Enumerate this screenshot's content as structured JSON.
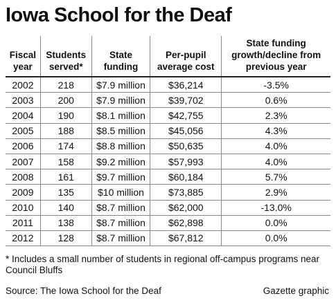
{
  "header": {
    "title": "Iowa School for the Deaf"
  },
  "table": {
    "columns": [
      [
        "Fiscal",
        "year"
      ],
      [
        "Students",
        "served*"
      ],
      [
        "State",
        "funding"
      ],
      [
        "Per-pupil",
        "average cost"
      ],
      [
        "State funding",
        "growth/decline from",
        "previous year"
      ]
    ],
    "rows": [
      [
        "2002",
        "218",
        "$7.9 million",
        "$36,214",
        "-3.5%"
      ],
      [
        "2003",
        "200",
        "$7.9 million",
        "$39,702",
        "0.6%"
      ],
      [
        "2004",
        "190",
        "$8.1 million",
        "$42,755",
        "2.3%"
      ],
      [
        "2005",
        "188",
        "$8.5 million",
        "$45,056",
        "4.3%"
      ],
      [
        "2006",
        "174",
        "$8.8 million",
        "$50,635",
        "4.0%"
      ],
      [
        "2007",
        "158",
        "$9.2 million",
        "$57,993",
        "4.0%"
      ],
      [
        "2008",
        "161",
        "$9.7 million",
        "$60,184",
        "5.7%"
      ],
      [
        "2009",
        "135",
        "$10 million",
        "$73,885",
        "2.9%"
      ],
      [
        "2010",
        "140",
        "$8.7 million",
        "$62,000",
        "-13.0%"
      ],
      [
        "2011",
        "138",
        "$8.7 million",
        "$62,898",
        "0.0%"
      ],
      [
        "2012",
        "128",
        "$8.7 million",
        "$67,812",
        "0.0%"
      ]
    ]
  },
  "footer": {
    "note": "* Includes a small number of students in regional off-campus programs near Council Bluffs",
    "source": "Source: The Iowa School for the Deaf",
    "credit": "Gazette graphic"
  }
}
